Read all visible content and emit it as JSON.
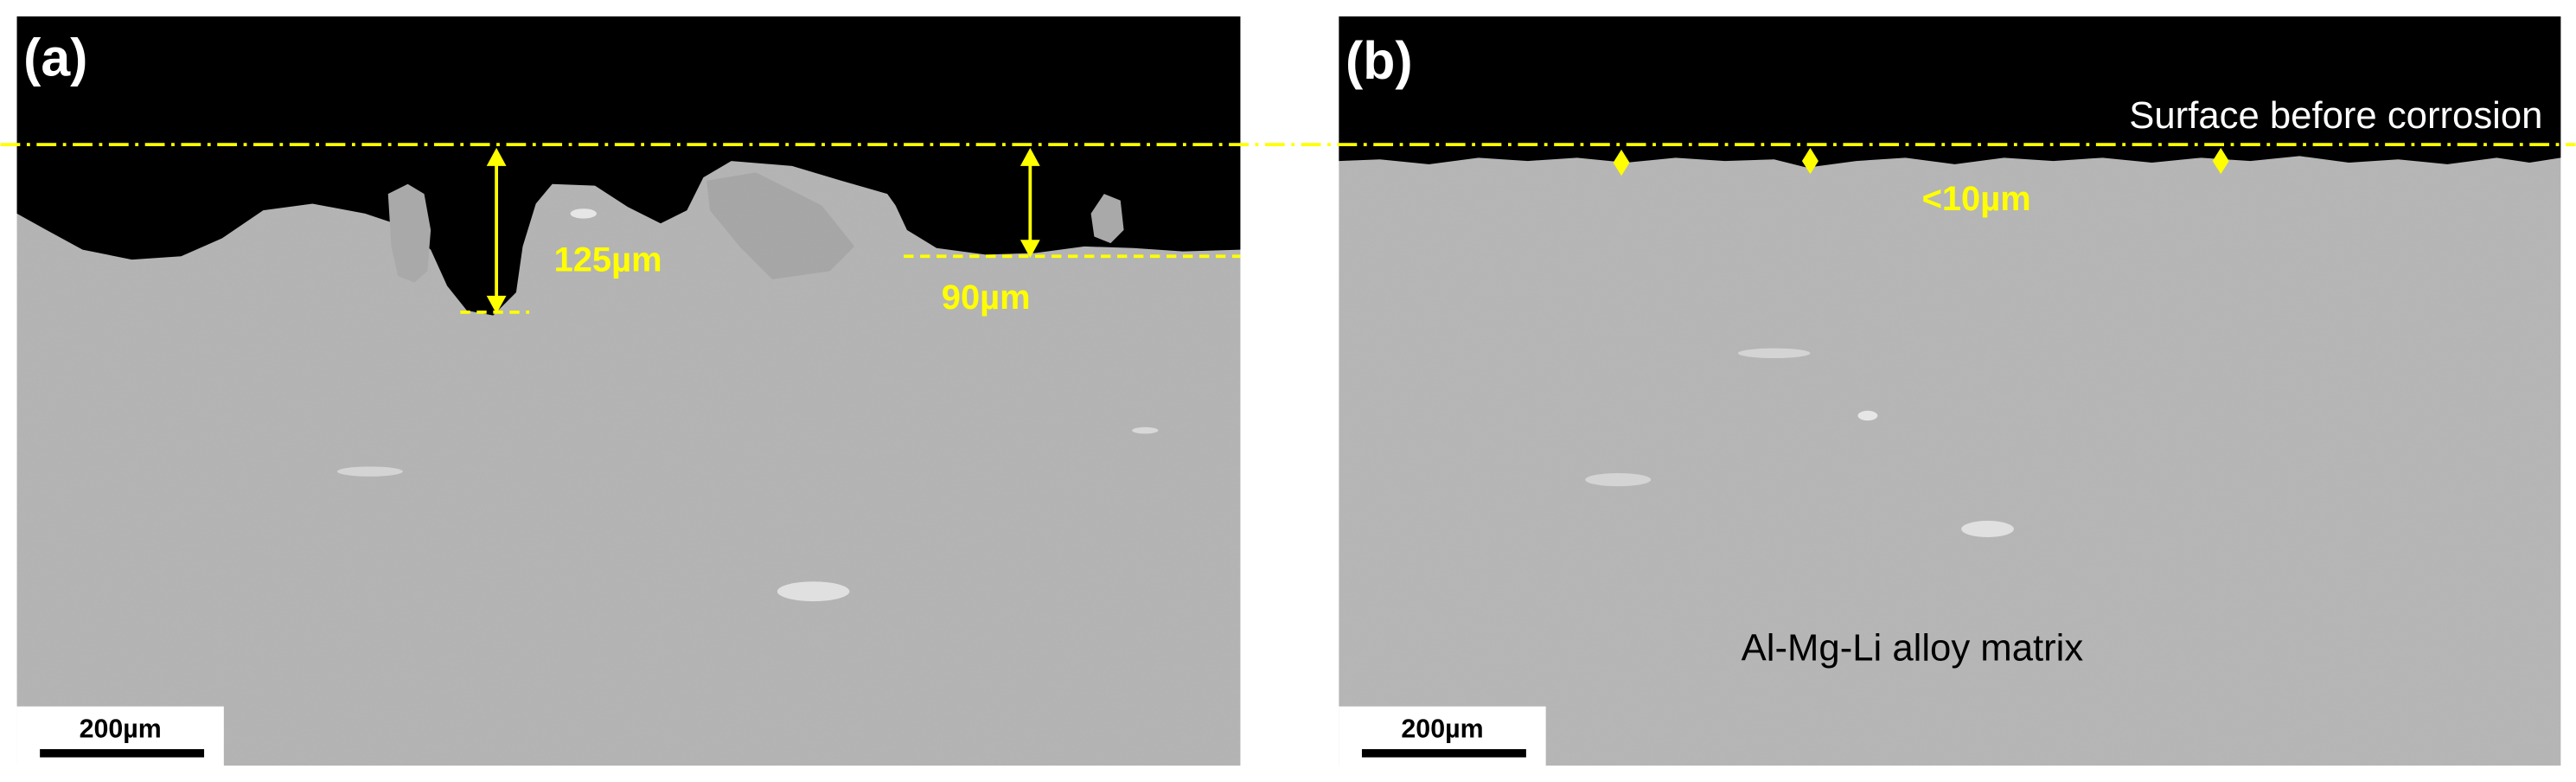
{
  "panels": [
    {
      "label": "(a)",
      "annotations": [
        "125µm",
        "90µm"
      ],
      "scale_bar": "200µm"
    },
    {
      "label": "(b)",
      "annotations": [
        "Surface before corrosion",
        "<10µm",
        "Al-Mg-Li alloy matrix"
      ],
      "scale_bar": "200µm"
    }
  ]
}
